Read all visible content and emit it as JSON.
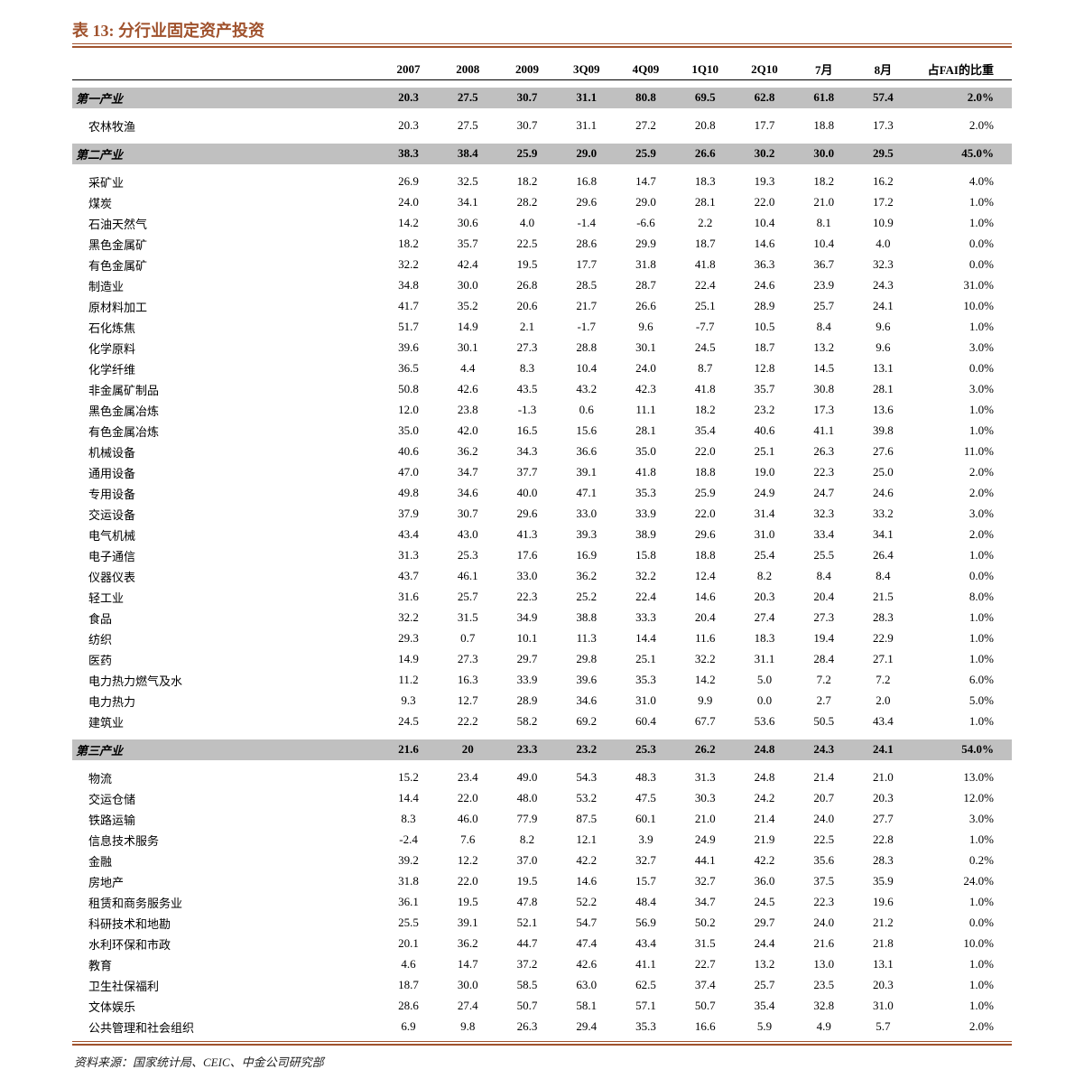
{
  "title": "表 13:  分行业固定资产投资",
  "source": "资料来源：国家统计局、CEIC、中金公司研究部",
  "colors": {
    "accent": "#a0522d",
    "highlight_bg": "#c0c0c0",
    "text": "#000000"
  },
  "typography": {
    "title_fontsize": 18,
    "body_fontsize": 13,
    "font_family": "SimSun / Times New Roman"
  },
  "table": {
    "header": {
      "label": " ",
      "cols": [
        "2007",
        "2008",
        "2009",
        "3Q09",
        "4Q09",
        "1Q10",
        "2Q10",
        "7月",
        "8月"
      ],
      "pct_label": "占FAI的比重"
    },
    "sections": [
      {
        "highlight": true,
        "label": "第一产业",
        "values": [
          "20.3",
          "27.5",
          "30.7",
          "31.1",
          "80.8",
          "69.5",
          "62.8",
          "61.8",
          "57.4"
        ],
        "pct": "2.0%",
        "children": [
          {
            "label": "农林牧渔",
            "values": [
              "20.3",
              "27.5",
              "30.7",
              "31.1",
              "27.2",
              "20.8",
              "17.7",
              "18.8",
              "17.3"
            ],
            "pct": "2.0%"
          }
        ]
      },
      {
        "highlight": true,
        "label": "第二产业",
        "values": [
          "38.3",
          "38.4",
          "25.9",
          "29.0",
          "25.9",
          "26.6",
          "30.2",
          "30.0",
          "29.5"
        ],
        "pct": "45.0%",
        "children": [
          {
            "label": "采矿业",
            "values": [
              "26.9",
              "32.5",
              "18.2",
              "16.8",
              "14.7",
              "18.3",
              "19.3",
              "18.2",
              "16.2"
            ],
            "pct": "4.0%"
          },
          {
            "label": "  煤炭",
            "values": [
              "24.0",
              "34.1",
              "28.2",
              "29.6",
              "29.0",
              "28.1",
              "22.0",
              "21.0",
              "17.2"
            ],
            "pct": "1.0%"
          },
          {
            "label": "  石油天然气",
            "values": [
              "14.2",
              "30.6",
              "4.0",
              "-1.4",
              "-6.6",
              "2.2",
              "10.4",
              "8.1",
              "10.9"
            ],
            "pct": "1.0%"
          },
          {
            "label": "  黑色金属矿",
            "values": [
              "18.2",
              "35.7",
              "22.5",
              "28.6",
              "29.9",
              "18.7",
              "14.6",
              "10.4",
              "4.0"
            ],
            "pct": "0.0%"
          },
          {
            "label": "  有色金属矿",
            "values": [
              "32.2",
              "42.4",
              "19.5",
              "17.7",
              "31.8",
              "41.8",
              "36.3",
              "36.7",
              "32.3"
            ],
            "pct": "0.0%"
          },
          {
            "label": "制造业",
            "values": [
              "34.8",
              "30.0",
              "26.8",
              "28.5",
              "28.7",
              "22.4",
              "24.6",
              "23.9",
              "24.3"
            ],
            "pct": "31.0%"
          },
          {
            "label": "  原材料加工",
            "values": [
              "41.7",
              "35.2",
              "20.6",
              "21.7",
              "26.6",
              "25.1",
              "28.9",
              "25.7",
              "24.1"
            ],
            "pct": "10.0%"
          },
          {
            "label": "    石化炼焦",
            "values": [
              "51.7",
              "14.9",
              "2.1",
              "-1.7",
              "9.6",
              "-7.7",
              "10.5",
              "8.4",
              "9.6"
            ],
            "pct": "1.0%"
          },
          {
            "label": "    化学原料",
            "values": [
              "39.6",
              "30.1",
              "27.3",
              "28.8",
              "30.1",
              "24.5",
              "18.7",
              "13.2",
              "9.6"
            ],
            "pct": "3.0%"
          },
          {
            "label": "    化学纤维",
            "values": [
              "36.5",
              "4.4",
              "8.3",
              "10.4",
              "24.0",
              "8.7",
              "12.8",
              "14.5",
              "13.1"
            ],
            "pct": "0.0%"
          },
          {
            "label": "    非金属矿制品",
            "values": [
              "50.8",
              "42.6",
              "43.5",
              "43.2",
              "42.3",
              "41.8",
              "35.7",
              "30.8",
              "28.1"
            ],
            "pct": "3.0%"
          },
          {
            "label": "    黑色金属冶炼",
            "values": [
              "12.0",
              "23.8",
              "-1.3",
              "0.6",
              "11.1",
              "18.2",
              "23.2",
              "17.3",
              "13.6"
            ],
            "pct": "1.0%"
          },
          {
            "label": "    有色金属冶炼",
            "values": [
              "35.0",
              "42.0",
              "16.5",
              "15.6",
              "28.1",
              "35.4",
              "40.6",
              "41.1",
              "39.8"
            ],
            "pct": "1.0%"
          },
          {
            "label": "  机械设备",
            "values": [
              "40.6",
              "36.2",
              "34.3",
              "36.6",
              "35.0",
              "22.0",
              "25.1",
              "26.3",
              "27.6"
            ],
            "pct": "11.0%"
          },
          {
            "label": "    通用设备",
            "values": [
              "47.0",
              "34.7",
              "37.7",
              "39.1",
              "41.8",
              "18.8",
              "19.0",
              "22.3",
              "25.0"
            ],
            "pct": "2.0%"
          },
          {
            "label": "    专用设备",
            "values": [
              "49.8",
              "34.6",
              "40.0",
              "47.1",
              "35.3",
              "25.9",
              "24.9",
              "24.7",
              "24.6"
            ],
            "pct": "2.0%"
          },
          {
            "label": "    交运设备",
            "values": [
              "37.9",
              "30.7",
              "29.6",
              "33.0",
              "33.9",
              "22.0",
              "31.4",
              "32.3",
              "33.2"
            ],
            "pct": "3.0%"
          },
          {
            "label": "    电气机械",
            "values": [
              "43.4",
              "43.0",
              "41.3",
              "39.3",
              "38.9",
              "29.6",
              "31.0",
              "33.4",
              "34.1"
            ],
            "pct": "2.0%"
          },
          {
            "label": "    电子通信",
            "values": [
              "31.3",
              "25.3",
              "17.6",
              "16.9",
              "15.8",
              "18.8",
              "25.4",
              "25.5",
              "26.4"
            ],
            "pct": "1.0%"
          },
          {
            "label": "    仪器仪表",
            "values": [
              "43.7",
              "46.1",
              "33.0",
              "36.2",
              "32.2",
              "12.4",
              "8.2",
              "8.4",
              "8.4"
            ],
            "pct": "0.0%"
          },
          {
            "label": "  轻工业",
            "values": [
              "31.6",
              "25.7",
              "22.3",
              "25.2",
              "22.4",
              "14.6",
              "20.3",
              "20.4",
              "21.5"
            ],
            "pct": "8.0%"
          },
          {
            "label": "    食品",
            "values": [
              "32.2",
              "31.5",
              "34.9",
              "38.8",
              "33.3",
              "20.4",
              "27.4",
              "27.3",
              "28.3"
            ],
            "pct": "1.0%"
          },
          {
            "label": "    纺织",
            "values": [
              "29.3",
              "0.7",
              "10.1",
              "11.3",
              "14.4",
              "11.6",
              "18.3",
              "19.4",
              "22.9"
            ],
            "pct": "1.0%"
          },
          {
            "label": "    医药",
            "values": [
              "14.9",
              "27.3",
              "29.7",
              "29.8",
              "25.1",
              "32.2",
              "31.1",
              "28.4",
              "27.1"
            ],
            "pct": "1.0%"
          },
          {
            "label": "电力热力燃气及水",
            "values": [
              "11.2",
              "16.3",
              "33.9",
              "39.6",
              "35.3",
              "14.2",
              "5.0",
              "7.2",
              "7.2"
            ],
            "pct": "6.0%"
          },
          {
            "label": "  电力热力",
            "values": [
              "9.3",
              "12.7",
              "28.9",
              "34.6",
              "31.0",
              "9.9",
              "0.0",
              "2.7",
              "2.0"
            ],
            "pct": "5.0%"
          },
          {
            "label": "建筑业",
            "values": [
              "24.5",
              "22.2",
              "58.2",
              "69.2",
              "60.4",
              "67.7",
              "53.6",
              "50.5",
              "43.4"
            ],
            "pct": "1.0%"
          }
        ]
      },
      {
        "highlight": true,
        "label": "第三产业",
        "values": [
          "21.6",
          "20",
          "23.3",
          "23.2",
          "25.3",
          "26.2",
          "24.8",
          "24.3",
          "24.1"
        ],
        "pct": "54.0%",
        "children": [
          {
            "label": "物流",
            "values": [
              "15.2",
              "23.4",
              "49.0",
              "54.3",
              "48.3",
              "31.3",
              "24.8",
              "21.4",
              "21.0"
            ],
            "pct": "13.0%"
          },
          {
            "label": "  交运仓储",
            "values": [
              "14.4",
              "22.0",
              "48.0",
              "53.2",
              "47.5",
              "30.3",
              "24.2",
              "20.7",
              "20.3"
            ],
            "pct": "12.0%"
          },
          {
            "label": "    铁路运输",
            "values": [
              "8.3",
              "46.0",
              "77.9",
              "87.5",
              "60.1",
              "21.0",
              "21.4",
              "24.0",
              "27.7"
            ],
            "pct": "3.0%"
          },
          {
            "label": "信息技术服务",
            "values": [
              "-2.4",
              "7.6",
              "8.2",
              "12.1",
              "3.9",
              "24.9",
              "21.9",
              "22.5",
              "22.8"
            ],
            "pct": "1.0%"
          },
          {
            "label": "金融",
            "values": [
              "39.2",
              "12.2",
              "37.0",
              "42.2",
              "32.7",
              "44.1",
              "42.2",
              "35.6",
              "28.3"
            ],
            "pct": "0.2%"
          },
          {
            "label": "房地产",
            "values": [
              "31.8",
              "22.0",
              "19.5",
              "14.6",
              "15.7",
              "32.7",
              "36.0",
              "37.5",
              "35.9"
            ],
            "pct": "24.0%"
          },
          {
            "label": "租赁和商务服务业",
            "values": [
              "36.1",
              "19.5",
              "47.8",
              "52.2",
              "48.4",
              "34.7",
              "24.5",
              "22.3",
              "19.6"
            ],
            "pct": "1.0%"
          },
          {
            "label": "科研技术和地勘",
            "values": [
              "25.5",
              "39.1",
              "52.1",
              "54.7",
              "56.9",
              "50.2",
              "29.7",
              "24.0",
              "21.2"
            ],
            "pct": "0.0%"
          },
          {
            "label": "水利环保和市政",
            "values": [
              "20.1",
              "36.2",
              "44.7",
              "47.4",
              "43.4",
              "31.5",
              "24.4",
              "21.6",
              "21.8"
            ],
            "pct": "10.0%"
          },
          {
            "label": "教育",
            "values": [
              "4.6",
              "14.7",
              "37.2",
              "42.6",
              "41.1",
              "22.7",
              "13.2",
              "13.0",
              "13.1"
            ],
            "pct": "1.0%"
          },
          {
            "label": "卫生社保福利",
            "values": [
              "18.7",
              "30.0",
              "58.5",
              "63.0",
              "62.5",
              "37.4",
              "25.7",
              "23.5",
              "20.3"
            ],
            "pct": "1.0%"
          },
          {
            "label": "文体娱乐",
            "values": [
              "28.6",
              "27.4",
              "50.7",
              "58.1",
              "57.1",
              "50.7",
              "35.4",
              "32.8",
              "31.0"
            ],
            "pct": "1.0%"
          },
          {
            "label": "公共管理和社会组织",
            "values": [
              "6.9",
              "9.8",
              "26.3",
              "29.4",
              "35.3",
              "16.6",
              "5.9",
              "4.9",
              "5.7"
            ],
            "pct": "2.0%"
          }
        ]
      }
    ]
  }
}
